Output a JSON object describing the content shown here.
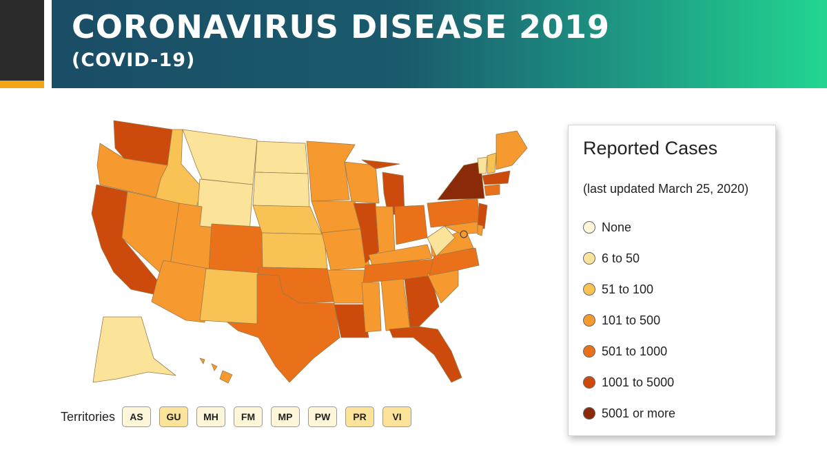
{
  "header": {
    "title": "CORONAVIRUS DISEASE 2019",
    "subtitle": "(COVID-19)"
  },
  "map": {
    "territories_label": "Territories",
    "territories": [
      {
        "code": "AS",
        "color": "#fdf6d8"
      },
      {
        "code": "GU",
        "color": "#fbe39a"
      },
      {
        "code": "MH",
        "color": "#fdf6d8"
      },
      {
        "code": "FM",
        "color": "#fdf6d8"
      },
      {
        "code": "MP",
        "color": "#fdf6d8"
      },
      {
        "code": "PW",
        "color": "#fdf6d8"
      },
      {
        "code": "PR",
        "color": "#fbe39a"
      },
      {
        "code": "VI",
        "color": "#fbe39a"
      }
    ]
  },
  "legend": {
    "title": "Reported Cases",
    "updated": "(last updated March 25, 2020)",
    "items": [
      {
        "label": "None",
        "color": "#fdf6d8"
      },
      {
        "label": "6 to 50",
        "color": "#fbe39a"
      },
      {
        "label": "51 to 100",
        "color": "#f9c254"
      },
      {
        "label": "101 to 500",
        "color": "#f6992e"
      },
      {
        "label": "501 to 1000",
        "color": "#ea7119"
      },
      {
        "label": "1001 to 5000",
        "color": "#cc4a0c"
      },
      {
        "label": "5001 or more",
        "color": "#8a2a08"
      }
    ]
  }
}
